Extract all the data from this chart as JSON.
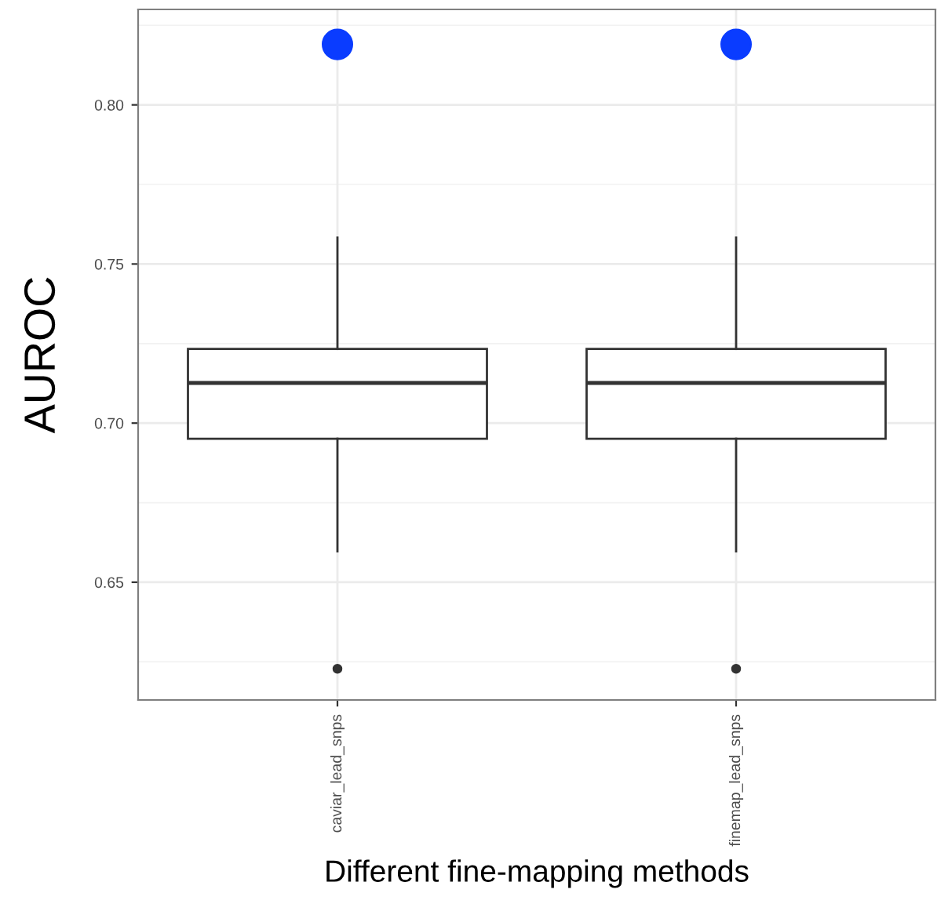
{
  "chart_data": {
    "type": "box",
    "xlabel": "Different fine-mapping methods",
    "ylabel": "AUROC",
    "categories": [
      "caviar_lead_snps",
      "finemap_lead_snps"
    ],
    "boxes": [
      {
        "low": 0.6597,
        "q1": 0.6951,
        "median": 0.7126,
        "q3": 0.7233,
        "high": 0.7583,
        "outliers": [
          0.6228
        ]
      },
      {
        "low": 0.6597,
        "q1": 0.6951,
        "median": 0.7126,
        "q3": 0.7233,
        "high": 0.7583,
        "outliers": [
          0.6228
        ]
      }
    ],
    "series": [
      {
        "type": "scatter",
        "color": "#0a3cff",
        "x": [
          "caviar_lead_snps",
          "finemap_lead_snps"
        ],
        "values": [
          0.819,
          0.819
        ]
      }
    ],
    "ylim": [
      0.613,
      0.83
    ],
    "yticks": [
      {
        "value": 0.65,
        "label": "0.65"
      },
      {
        "value": 0.7,
        "label": "0.70"
      },
      {
        "value": 0.75,
        "label": "0.75"
      },
      {
        "value": 0.8,
        "label": "0.80"
      }
    ],
    "grid": true,
    "legend": false,
    "marker": "circle"
  }
}
